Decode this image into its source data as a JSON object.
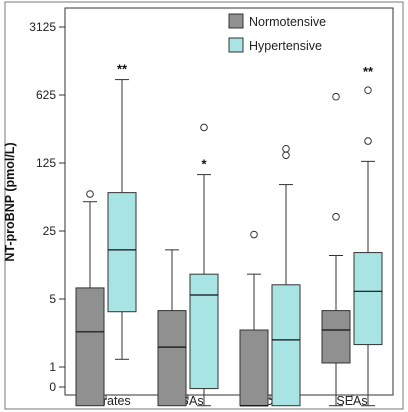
{
  "chart_data": {
    "type": "box",
    "ylabel": "NT-proBNP (pmol/L)",
    "yscale": "log (offset, 0 at bottom)",
    "yticks": [
      0,
      1,
      5,
      25,
      125,
      625,
      3125
    ],
    "ylim": [
      0,
      6000
    ],
    "grid": false,
    "legend_position": "top-right",
    "categories": [
      "Emirates",
      "nGAs",
      "Africans",
      "SEAs"
    ],
    "series": [
      {
        "name": "Normotensive",
        "color": "#909090",
        "boxes": [
          {
            "whisker_low": 0.4,
            "q1": 0.4,
            "median": 2.3,
            "q3": 6.5,
            "whisker_high": 50,
            "outliers": [
              60
            ]
          },
          {
            "whisker_low": 0.4,
            "q1": 0.4,
            "median": 1.6,
            "q3": 3.8,
            "whisker_high": 16,
            "outliers": []
          },
          {
            "whisker_low": 0.4,
            "q1": 0.4,
            "median": 0.4,
            "q3": 2.4,
            "whisker_high": 9,
            "outliers": [
              23
            ]
          },
          {
            "whisker_low": 0.4,
            "q1": 1.1,
            "median": 2.4,
            "q3": 3.8,
            "whisker_high": 14,
            "outliers": [
              35,
              600
            ]
          }
        ]
      },
      {
        "name": "Hypertensive",
        "color": "#a8e4e4",
        "boxes": [
          {
            "whisker_low": 1.2,
            "q1": 3.7,
            "median": 16,
            "q3": 62,
            "whisker_high": 900,
            "outliers": []
          },
          {
            "whisker_low": 0.4,
            "q1": 0.6,
            "median": 5.5,
            "q3": 9,
            "whisker_high": 95,
            "outliers": [
              290
            ]
          },
          {
            "whisker_low": 0.4,
            "q1": 0.4,
            "median": 1.9,
            "q3": 7,
            "whisker_high": 75,
            "outliers": [
              150,
              175
            ]
          },
          {
            "whisker_low": 0.4,
            "q1": 1.7,
            "median": 6,
            "q3": 15,
            "whisker_high": 130,
            "outliers": [
              210,
              700
            ]
          }
        ]
      }
    ],
    "annotations": [
      {
        "category": "Emirates",
        "series": "Hypertensive",
        "text": "**"
      },
      {
        "category": "nGAs",
        "series": "Hypertensive",
        "text": "*"
      },
      {
        "category": "SEAs",
        "series": "Hypertensive",
        "text": "**"
      }
    ]
  }
}
